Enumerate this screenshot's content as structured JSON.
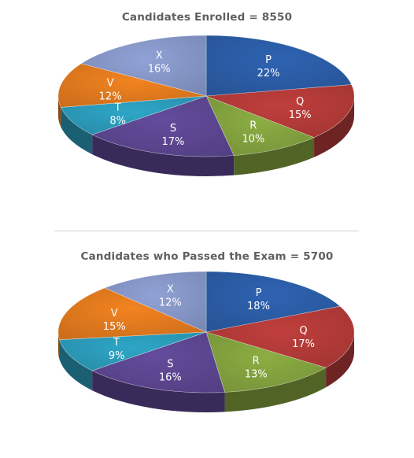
{
  "chart_data": [
    {
      "type": "pie",
      "title": "Candidates Enrolled = 8550",
      "slices": [
        {
          "label": "P",
          "value": 22,
          "display": "22%",
          "color": "#2b5ca5"
        },
        {
          "label": "Q",
          "value": 15,
          "display": "15%",
          "color": "#b23a38"
        },
        {
          "label": "R",
          "value": 10,
          "display": "10%",
          "color": "#82a13e"
        },
        {
          "label": "S",
          "value": 17,
          "display": "17%",
          "color": "#5c4690"
        },
        {
          "label": "T",
          "value": 8,
          "display": "8%",
          "color": "#2b9ab8"
        },
        {
          "label": "V",
          "value": 12,
          "display": "12%",
          "color": "#e0791e"
        },
        {
          "label": "X",
          "value": 16,
          "display": "16%",
          "color": "#8596c6"
        }
      ]
    },
    {
      "type": "pie",
      "title": "Candidates who Passed the Exam = 5700",
      "slices": [
        {
          "label": "P",
          "value": 18,
          "display": "18%",
          "color": "#2b5ca5"
        },
        {
          "label": "Q",
          "value": 17,
          "display": "17%",
          "color": "#b23a38"
        },
        {
          "label": "R",
          "value": 13,
          "display": "13%",
          "color": "#82a13e"
        },
        {
          "label": "S",
          "value": 16,
          "display": "16%",
          "color": "#5c4690"
        },
        {
          "label": "T",
          "value": 9,
          "display": "9%",
          "color": "#2b9ab8"
        },
        {
          "label": "V",
          "value": 15,
          "display": "15%",
          "color": "#e0791e"
        },
        {
          "label": "X",
          "value": 12,
          "display": "12%",
          "color": "#8596c6"
        }
      ]
    }
  ]
}
